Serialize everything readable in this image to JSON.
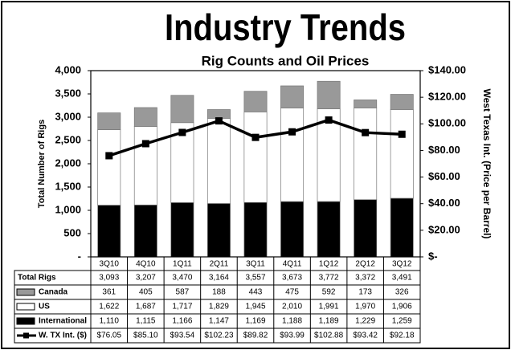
{
  "chart_data": {
    "type": "bar-line",
    "title": "Industry Trends",
    "subtitle": "Rig Counts and Oil Prices",
    "y_label": "Total Number  of Rigs",
    "y2_label": "West Texas Int. (Price per Barrel)",
    "categories": [
      "3Q10",
      "4Q10",
      "1Q11",
      "2Q11",
      "3Q11",
      "4Q11",
      "1Q12",
      "2Q12",
      "3Q12"
    ],
    "stacked": true,
    "ylim": [
      0,
      4000
    ],
    "yticks": [
      {
        "value": 0,
        "label": "-"
      },
      500,
      {
        "value": 1000,
        "label": "1,000"
      },
      {
        "value": 1500,
        "label": "1,500"
      },
      {
        "value": 2000,
        "label": "2,000"
      },
      {
        "value": 2500,
        "label": "2,500"
      },
      {
        "value": 3000,
        "label": "3,000"
      },
      {
        "value": 3500,
        "label": "3,500"
      },
      {
        "value": 4000,
        "label": "4,000"
      }
    ],
    "y2lim": [
      0,
      140
    ],
    "y2ticks": [
      {
        "value": 0,
        "label": "$-"
      },
      {
        "value": 20,
        "label": "$20.00"
      },
      {
        "value": 40,
        "label": "$40.00"
      },
      {
        "value": 60,
        "label": "$60.00"
      },
      {
        "value": 80,
        "label": "$80.00"
      },
      {
        "value": 100,
        "label": "$100.00"
      },
      {
        "value": 120,
        "label": "$120.00"
      },
      {
        "value": 140,
        "label": "$140.00"
      }
    ],
    "totals": {
      "name": "Total Rigs",
      "values": [
        3093,
        3207,
        3470,
        3164,
        3557,
        3673,
        3772,
        3372,
        3491
      ],
      "value_labels": [
        "3,093",
        "3,207",
        "3,470",
        "3,164",
        "3,557",
        "3,673",
        "3,772",
        "3,372",
        "3,491"
      ]
    },
    "series": [
      {
        "name": "Canada",
        "color": "#999999",
        "type": "bar",
        "values": [
          361,
          405,
          587,
          188,
          443,
          475,
          592,
          173,
          326
        ]
      },
      {
        "name": "US",
        "color": "#ffffff",
        "type": "bar",
        "values": [
          1622,
          1687,
          1717,
          1829,
          1945,
          2010,
          1991,
          1970,
          1906
        ],
        "value_labels": [
          "1,622",
          "1,687",
          "1,717",
          "1,829",
          "1,945",
          "2,010",
          "1,991",
          "1,970",
          "1,906"
        ]
      },
      {
        "name": "International",
        "color": "#000000",
        "type": "bar",
        "values": [
          1110,
          1115,
          1166,
          1147,
          1169,
          1188,
          1189,
          1229,
          1259
        ],
        "value_labels": [
          "1,110",
          "1,115",
          "1,166",
          "1,147",
          "1,169",
          "1,188",
          "1,189",
          "1,229",
          "1,259"
        ]
      },
      {
        "name": "W. TX Int. ($)",
        "color": "#000000",
        "type": "line",
        "axis": "y2",
        "values": [
          76.05,
          85.1,
          93.54,
          102.23,
          89.82,
          93.99,
          102.88,
          93.42,
          92.18
        ],
        "value_labels": [
          "$76.05",
          "$85.10",
          "$93.54",
          "$102.23",
          "$89.82",
          "$93.99",
          "$102.88",
          "$93.42",
          "$92.18"
        ]
      }
    ]
  }
}
